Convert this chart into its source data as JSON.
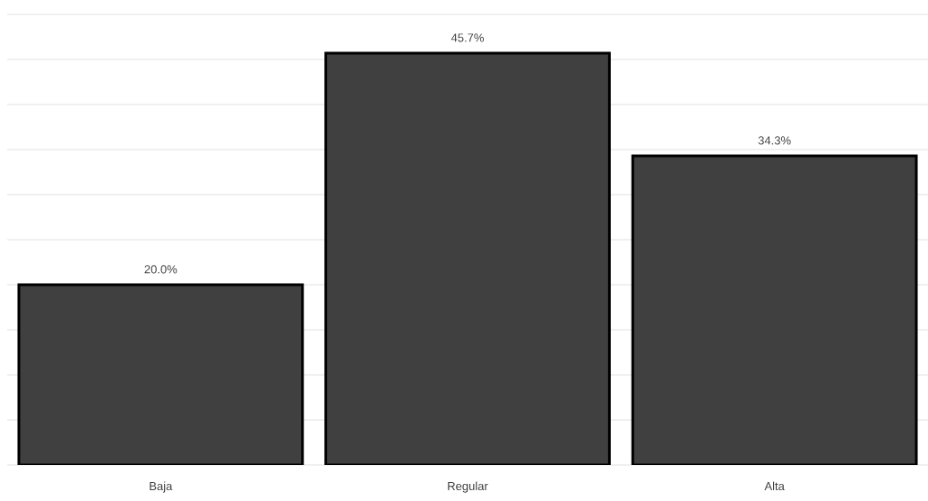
{
  "chart_data": {
    "type": "bar",
    "categories": [
      "Baja",
      "Regular",
      "Alta"
    ],
    "values": [
      20.0,
      45.7,
      34.3
    ],
    "value_labels": [
      "20.0%",
      "45.7%",
      "34.3%"
    ],
    "color": "#404040",
    "ylim": [
      0,
      50
    ],
    "yticks": [
      {
        "value": 0,
        "label": null
      },
      {
        "value": 5,
        "label": null
      },
      {
        "value": 10,
        "label": null
      },
      {
        "value": 15,
        "label": null
      },
      {
        "value": 20,
        "label": null
      },
      {
        "value": 25,
        "label": null
      },
      {
        "value": 30,
        "label": null
      },
      {
        "value": 35,
        "label": null
      },
      {
        "value": 40,
        "label": null
      },
      {
        "value": 45,
        "label": null
      },
      {
        "value": 50,
        "label": null
      }
    ],
    "grid": "y",
    "tick_labels": "x"
  }
}
